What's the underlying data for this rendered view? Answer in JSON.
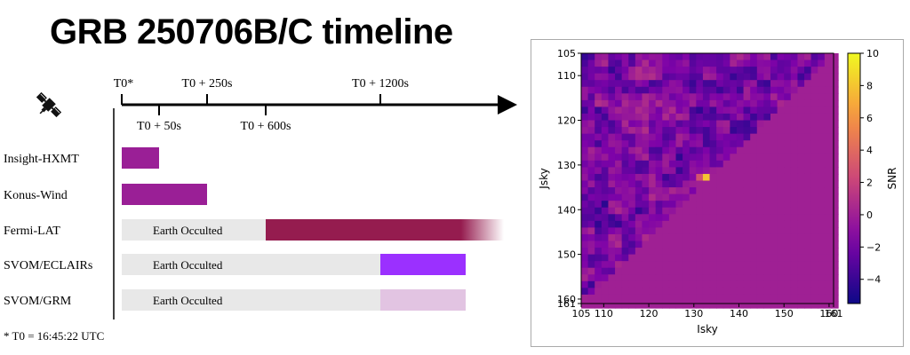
{
  "title": "GRB 250706B/C timeline",
  "footnote": "* T0 = 16:45:22 UTC",
  "icon": "satellite-icon",
  "chart_data": [
    {
      "type": "bar",
      "subtype": "timeline-gantt",
      "tick_labels_above": [
        "T0*",
        "T0 + 250s",
        "T0 + 1200s"
      ],
      "tick_labels_below": [
        "T0 + 50s",
        "T0 + 600s"
      ],
      "tick_seconds": [
        0,
        50,
        250,
        600,
        1200
      ],
      "instruments": [
        "Insight-HXMT",
        "Konus-Wind",
        "Fermi-LAT",
        "SVOM/ECLAIRs",
        "SVOM/GRM"
      ],
      "bars": [
        {
          "instrument": "Insight-HXMT",
          "occulted": null,
          "active": {
            "start": 0,
            "end": 50
          },
          "color": "#9a1f96"
        },
        {
          "instrument": "Konus-Wind",
          "occulted": null,
          "active": {
            "start": 0,
            "end": 110
          },
          "color": "#9a1f96"
        },
        {
          "instrument": "Fermi-LAT",
          "occulted": {
            "start": 0,
            "end": 600,
            "label": "Earth Occulted"
          },
          "active": {
            "start": 600,
            "end": 1700,
            "fade": true
          },
          "color": "#951c4f"
        },
        {
          "instrument": "SVOM/ECLAIRs",
          "occulted": {
            "start": 0,
            "end": 1200,
            "label": "Earth Occulted"
          },
          "active": {
            "start": 1200,
            "end": 1600
          },
          "color": "#9b30ff"
        },
        {
          "instrument": "SVOM/GRM",
          "occulted": {
            "start": 0,
            "end": 1200,
            "label": "Earth Occulted"
          },
          "active": {
            "start": 1200,
            "end": 1600
          },
          "color": "#e2c4e2"
        }
      ],
      "occulted_color": "#e8e8e8"
    },
    {
      "type": "heatmap",
      "xlabel": "Isky",
      "ylabel": "Jsky",
      "xlim": [
        105,
        161
      ],
      "ylim": [
        161,
        105
      ],
      "xticks": [
        105,
        110,
        120,
        130,
        140,
        150,
        160,
        161
      ],
      "yticks": [
        105,
        110,
        120,
        130,
        140,
        150,
        160,
        161
      ],
      "colorbar": {
        "label": "SNR",
        "range": [
          -5.5,
          10
        ],
        "ticks": [
          10,
          8,
          6,
          4,
          2,
          0,
          -2,
          -4
        ],
        "colormap": "plasma"
      },
      "source_peak": {
        "x": 132.5,
        "y": 132.5,
        "snr": 10
      },
      "masked_region": "upper-right triangle (Isky + Jsky > ~265) shown as constant value ≈ 0",
      "background_value": 0
    }
  ]
}
